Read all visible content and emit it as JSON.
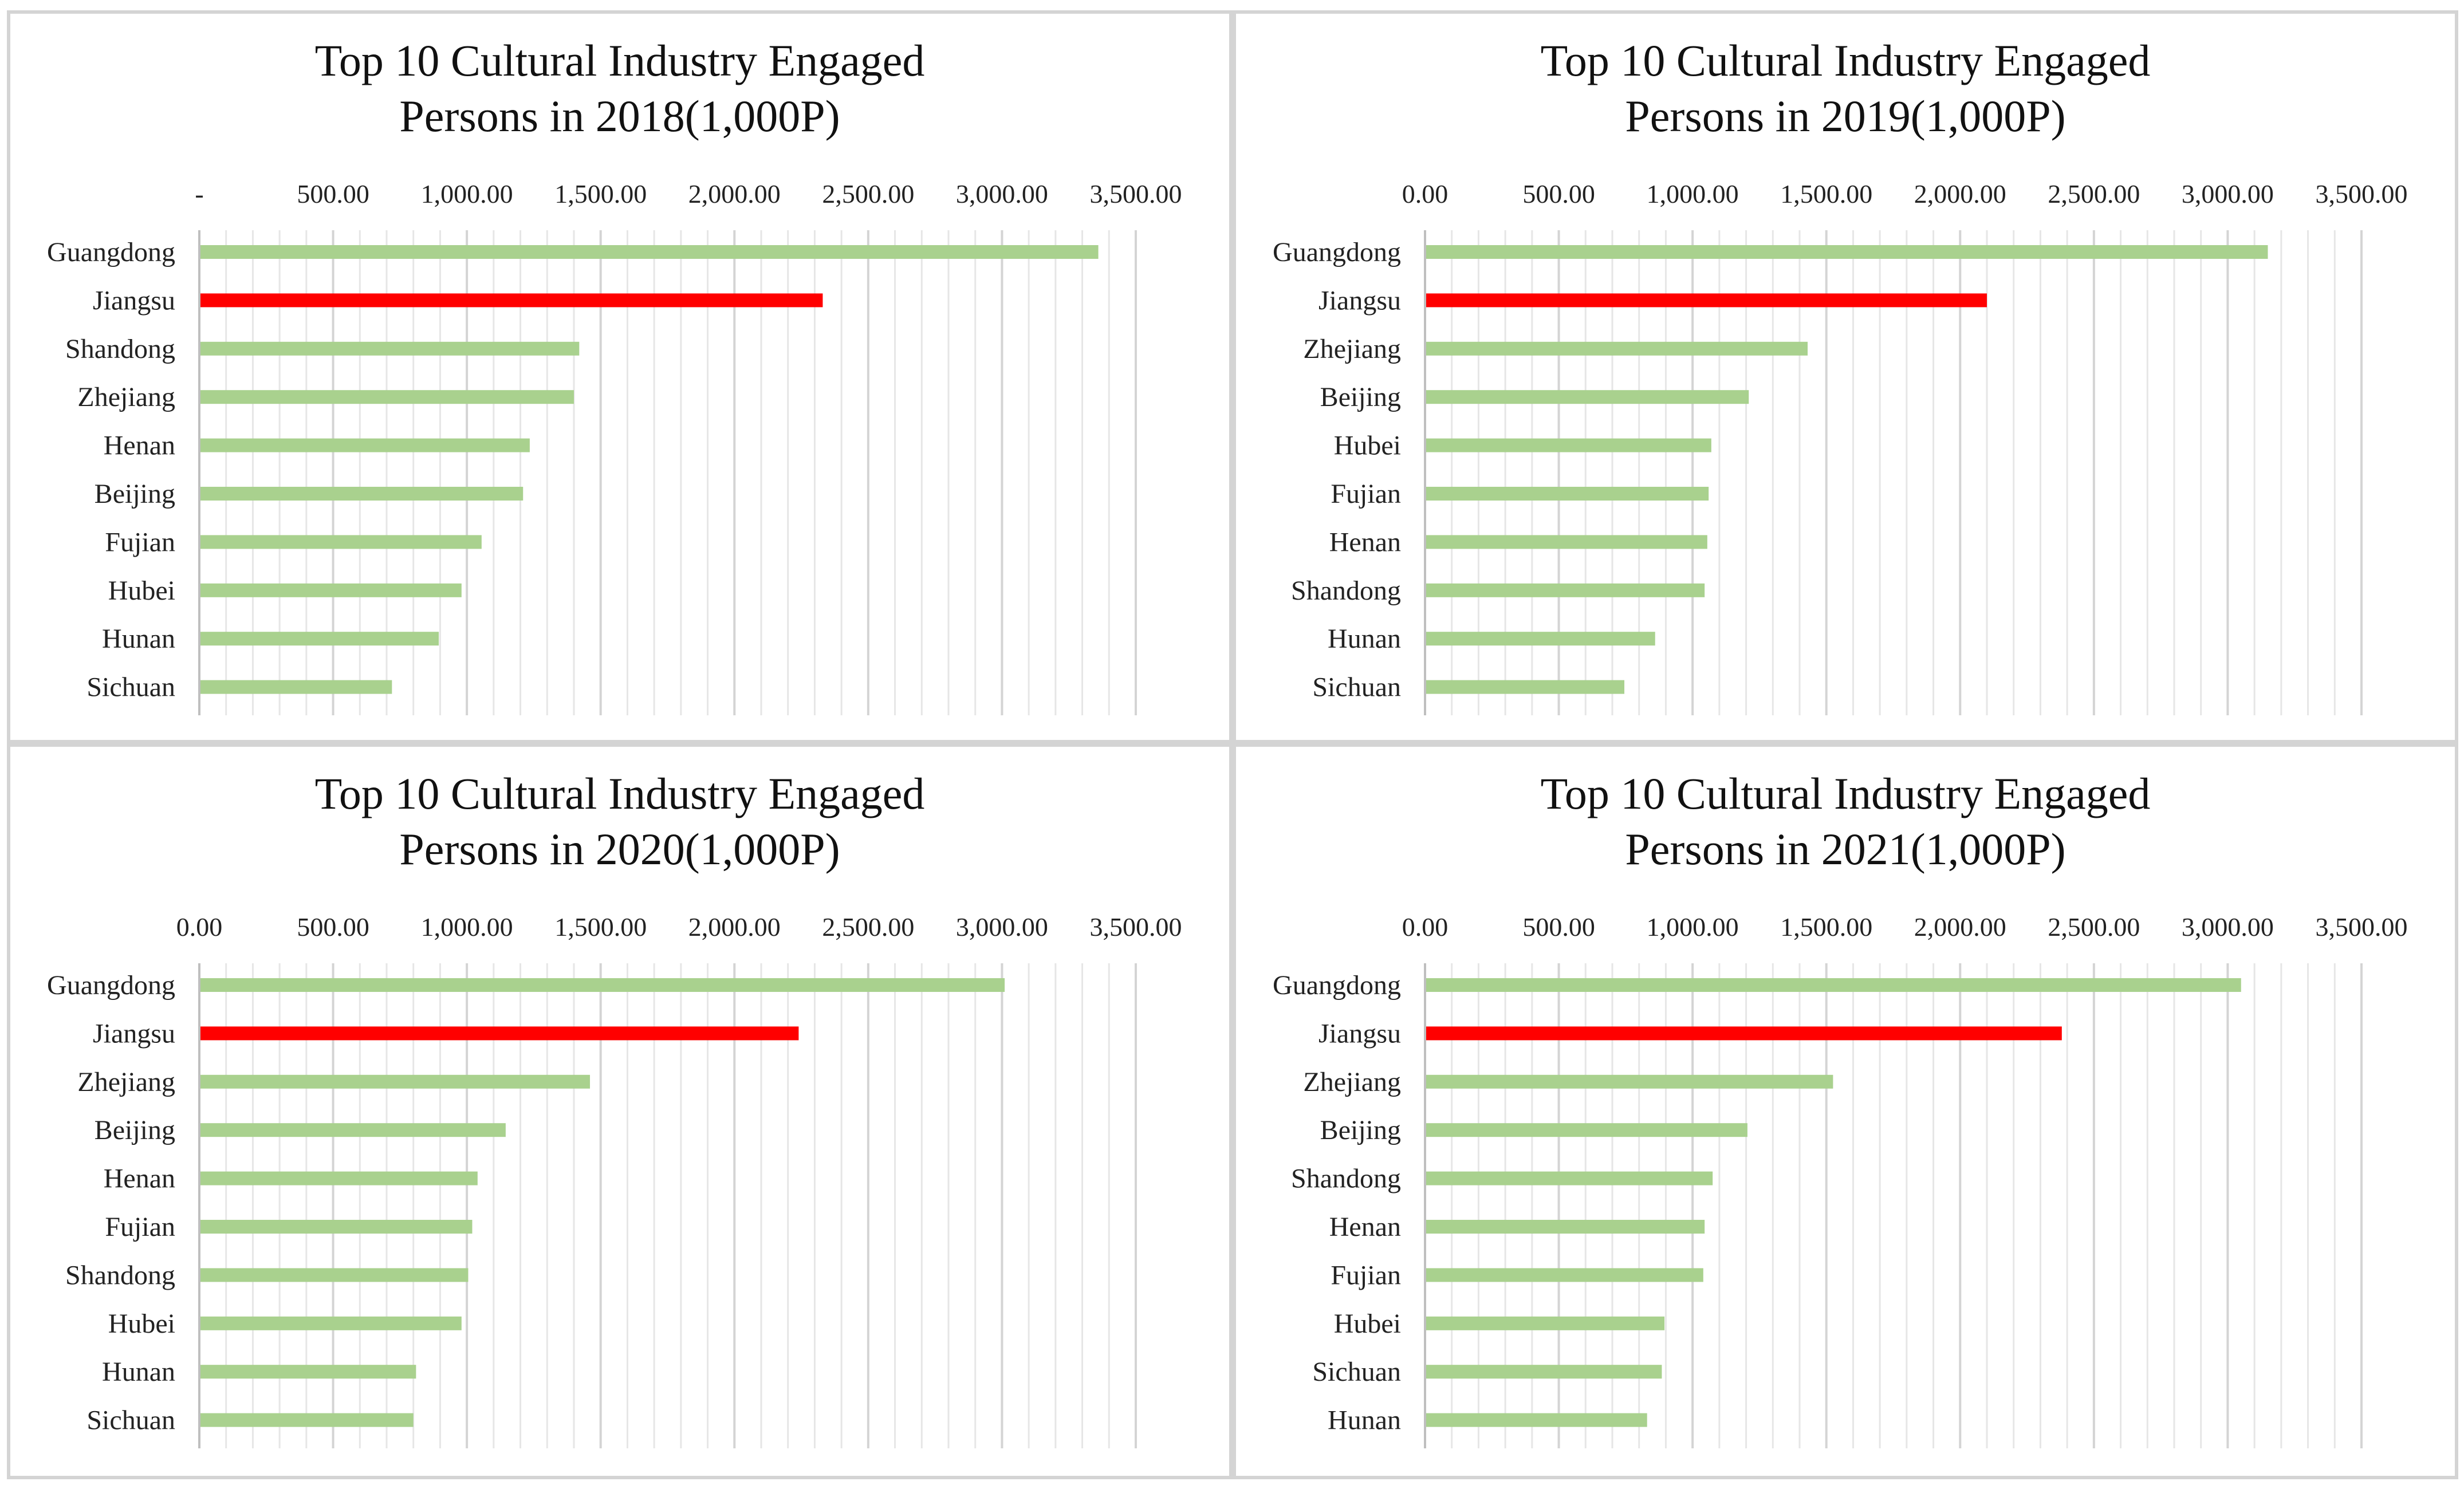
{
  "colors": {
    "bar_default": "#a9d18e",
    "bar_highlight": "#ff0000",
    "gridline_major": "#d4d4d4",
    "gridline_minor": "#e6e6e6",
    "axis_line": "#bfbfbf",
    "panel_border": "#d4d4d4"
  },
  "chart_data": [
    {
      "type": "bar",
      "orientation": "horizontal",
      "title": "Top 10 Cultural Industry Engaged Persons in 2018(1,000P)",
      "title_lines": [
        "Top 10 Cultural Industry Engaged",
        "Persons in 2018(1,000P)"
      ],
      "categories": [
        "Guangdong",
        "Jiangsu",
        "Shandong",
        "Zhejiang",
        "Henan",
        "Beijing",
        "Fujian",
        "Hubei",
        "Hunan",
        "Sichuan"
      ],
      "values": [
        3360,
        2330,
        1420,
        1400,
        1235,
        1210,
        1055,
        980,
        895,
        720
      ],
      "highlight": "Jiangsu",
      "xlim": [
        0,
        3500
      ],
      "x_axis_position": "top",
      "x_ticks": [
        0,
        500,
        1000,
        1500,
        2000,
        2500,
        3000,
        3500
      ],
      "x_tick_labels": [
        "-",
        "500.00",
        "1,000.00",
        "1,500.00",
        "2,000.00",
        "2,500.00",
        "3,000.00",
        "3,500.00"
      ],
      "minor_step": 100,
      "grid": true,
      "legend": "none"
    },
    {
      "type": "bar",
      "orientation": "horizontal",
      "title": "Top 10 Cultural Industry Engaged Persons in 2019(1,000P)",
      "title_lines": [
        "Top 10 Cultural Industry Engaged",
        "Persons in 2019(1,000P)"
      ],
      "categories": [
        "Guangdong",
        "Jiangsu",
        "Zhejiang",
        "Beijing",
        "Hubei",
        "Fujian",
        "Henan",
        "Shandong",
        "Hunan",
        "Sichuan"
      ],
      "values": [
        3150,
        2100,
        1430,
        1210,
        1070,
        1060,
        1055,
        1045,
        860,
        745
      ],
      "highlight": "Jiangsu",
      "xlim": [
        0,
        3500
      ],
      "x_axis_position": "top",
      "x_ticks": [
        0,
        500,
        1000,
        1500,
        2000,
        2500,
        3000,
        3500
      ],
      "x_tick_labels": [
        "0.00",
        "500.00",
        "1,000.00",
        "1,500.00",
        "2,000.00",
        "2,500.00",
        "3,000.00",
        "3,500.00"
      ],
      "minor_step": 100,
      "grid": true,
      "legend": "none"
    },
    {
      "type": "bar",
      "orientation": "horizontal",
      "title": "Top 10 Cultural Industry Engaged Persons in 2020(1,000P)",
      "title_lines": [
        "Top 10 Cultural Industry Engaged",
        "Persons in 2020(1,000P)"
      ],
      "categories": [
        "Guangdong",
        "Jiangsu",
        "Zhejiang",
        "Beijing",
        "Henan",
        "Fujian",
        "Shandong",
        "Hubei",
        "Hunan",
        "Sichuan"
      ],
      "values": [
        3010,
        2240,
        1460,
        1145,
        1040,
        1020,
        1005,
        980,
        810,
        800
      ],
      "highlight": "Jiangsu",
      "xlim": [
        0,
        3500
      ],
      "x_axis_position": "top",
      "x_ticks": [
        0,
        500,
        1000,
        1500,
        2000,
        2500,
        3000,
        3500
      ],
      "x_tick_labels": [
        "0.00",
        "500.00",
        "1,000.00",
        "1,500.00",
        "2,000.00",
        "2,500.00",
        "3,000.00",
        "3,500.00"
      ],
      "minor_step": 100,
      "grid": true,
      "legend": "none"
    },
    {
      "type": "bar",
      "orientation": "horizontal",
      "title": "Top 10 Cultural Industry Engaged Persons in 2021(1,000P)",
      "title_lines": [
        "Top 10 Cultural Industry Engaged",
        "Persons in 2021(1,000P)"
      ],
      "categories": [
        "Guangdong",
        "Jiangsu",
        "Zhejiang",
        "Beijing",
        "Shandong",
        "Henan",
        "Fujian",
        "Hubei",
        "Sichuan",
        "Hunan"
      ],
      "values": [
        3050,
        2380,
        1525,
        1205,
        1075,
        1045,
        1040,
        895,
        885,
        830
      ],
      "highlight": "Jiangsu",
      "xlim": [
        0,
        3500
      ],
      "x_axis_position": "top",
      "x_ticks": [
        0,
        500,
        1000,
        1500,
        2000,
        2500,
        3000,
        3500
      ],
      "x_tick_labels": [
        "0.00",
        "500.00",
        "1,000.00",
        "1,500.00",
        "2,000.00",
        "2,500.00",
        "3,000.00",
        "3,500.00"
      ],
      "minor_step": 100,
      "grid": true,
      "legend": "none"
    }
  ]
}
